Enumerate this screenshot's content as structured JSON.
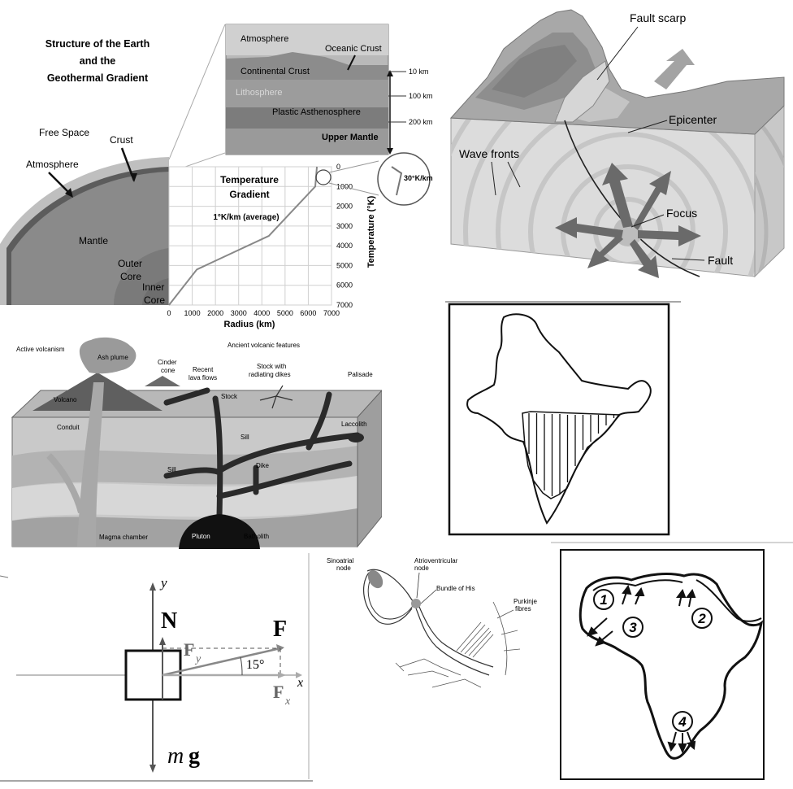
{
  "earth": {
    "title_line1": "Structure of the Earth",
    "title_line2": "and the",
    "title_line3": "Geothermal Gradient",
    "free_space": "Free Space",
    "crust": "Crust",
    "atmosphere": "Atmosphere",
    "mantle": "Mantle",
    "outer_core_1": "Outer",
    "outer_core_2": "Core",
    "inner_core_1": "Inner",
    "inner_core_2": "Core",
    "inset": {
      "atmosphere": "Atmosphere",
      "oceanic_crust": "Oceanic Crust",
      "continental_crust": "Continental Crust",
      "lithosphere": "Lithosphere",
      "asthenosphere": "Plastic Asthenosphere",
      "upper_mantle": "Upper Mantle",
      "km10": "10 km",
      "km100": "100 km",
      "km200": "200 km"
    },
    "graph_title_1": "Temperature",
    "graph_title_2": "Gradient",
    "graph_avg": "1°K/km (average)",
    "zoom_label": "30°K/km",
    "xlabel": "Radius (km)",
    "ylabel": "Temperature (°K)",
    "x_ticks": [
      "0",
      "1000",
      "2000",
      "3000",
      "4000",
      "5000",
      "6000",
      "7000"
    ],
    "y_ticks": [
      "0",
      "1000",
      "2000",
      "3000",
      "4000",
      "5000",
      "6000",
      "7000"
    ],
    "curve_radius_km": [
      0,
      1200,
      4300,
      6300,
      6371
    ],
    "curve_temp_k": [
      7000,
      5200,
      3500,
      1000,
      0
    ]
  },
  "quake": {
    "fault_scarp": "Fault scarp",
    "epicenter": "Epicenter",
    "wave_fronts": "Wave fronts",
    "focus": "Focus",
    "fault": "Fault"
  },
  "volcano": {
    "active": "Active volcanism",
    "ancient": "Ancient volcanic features",
    "ash_plume": "Ash plume",
    "cinder_1": "Cinder",
    "cinder_2": "cone",
    "recent_1": "Recent",
    "recent_2": "lava flows",
    "stock_dikes_1": "Stock with",
    "stock_dikes_2": "radiating dikes",
    "palisade": "Palisade",
    "volcano": "Volcano",
    "stock": "Stock",
    "conduit": "Conduit",
    "sill_upper": "Sill",
    "laccolith": "Laccolith",
    "sill_lower": "Sill",
    "dike": "Dike",
    "magma_chamber": "Magma chamber",
    "pluton": "Pluton",
    "batholith": "Batholith"
  },
  "force": {
    "y": "y",
    "x": "x",
    "N": "N",
    "F": "F",
    "Fy_main": "F",
    "Fy_sub": "y",
    "Fx_main": "F",
    "Fx_sub": "x",
    "angle": "15°",
    "mg_m": "m",
    "mg_g": "g"
  },
  "heart": {
    "sinoatrial_1": "Sinoatrial",
    "sinoatrial_2": "node",
    "av_1": "Atrioventricular",
    "av_2": "node",
    "his": "Bundle of His",
    "purkinje_1": "Purkinje",
    "purkinje_2": "fibres"
  },
  "africa": {
    "labels": [
      "1",
      "2",
      "3",
      "4"
    ]
  }
}
